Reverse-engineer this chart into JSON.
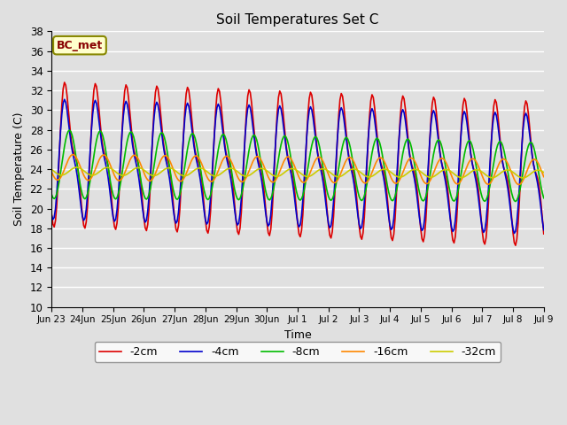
{
  "title": "Soil Temperatures Set C",
  "xlabel": "Time",
  "ylabel": "Soil Temperature (C)",
  "ylim": [
    10,
    38
  ],
  "yticks": [
    10,
    12,
    14,
    16,
    18,
    20,
    22,
    24,
    26,
    28,
    30,
    32,
    34,
    36,
    38
  ],
  "xtick_labels": [
    "Jun 23",
    "24Jun",
    "25Jun",
    "26Jun",
    "27Jun",
    "28Jun",
    "29Jun",
    "30Jun",
    "Jul 1",
    "Jul 2",
    "Jul 3",
    "Jul 4",
    "Jul 5",
    "Jul 6",
    "Jul 7",
    "Jul 8",
    "Jul 9"
  ],
  "series_colors": [
    "#dd0000",
    "#0000cc",
    "#00bb00",
    "#ff8800",
    "#cccc00"
  ],
  "series_labels": [
    "-2cm",
    "-4cm",
    "-8cm",
    "-16cm",
    "-32cm"
  ],
  "line_width": 1.2,
  "bg_color": "#e0e0e0",
  "annotation_text": "BC_met",
  "annotation_bg": "#ffffcc",
  "annotation_border": "#888800"
}
